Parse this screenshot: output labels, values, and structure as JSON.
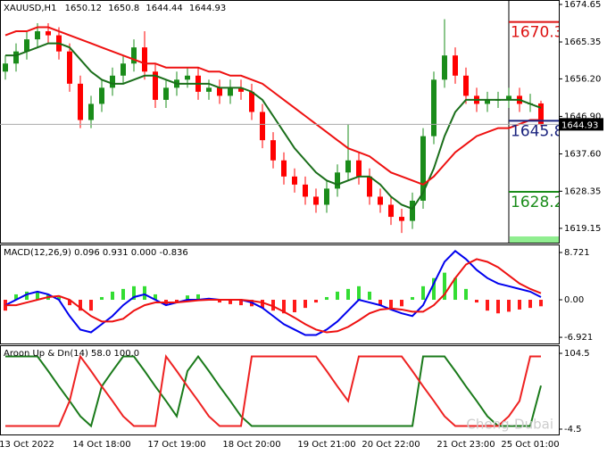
{
  "chart_data": [
    {
      "type": "candlestick",
      "title": "XAUUSD,H1",
      "categories": [
        null,
        null,
        "13 Oct 2022",
        null,
        null,
        null,
        null,
        null,
        null,
        "14 Oct 18:00",
        null,
        null,
        null,
        null,
        null,
        null,
        "17 Oct 19:00",
        null,
        null,
        null,
        null,
        null,
        null,
        "18 Oct 20:00",
        null,
        null,
        null,
        null,
        null,
        null,
        "19 Oct 21:00",
        null,
        null,
        null,
        null,
        null,
        "20 Oct 22:00",
        null,
        null,
        null,
        null,
        null,
        null,
        "21 Oct 23:00",
        null,
        null,
        null,
        null,
        null,
        "25 Oct 01:00",
        null
      ],
      "open": [
        1658,
        1660,
        1663,
        1666,
        1668,
        1667,
        1663,
        1655,
        1646,
        1650,
        1654,
        1657,
        1660,
        1664,
        1658,
        1651,
        1654,
        1656,
        1657,
        1653,
        1654,
        1652,
        1654,
        1653,
        1648,
        1641,
        1636,
        1632,
        1630,
        1627,
        1625,
        1629,
        1633,
        1636,
        1632,
        1627,
        1625,
        1622,
        1621,
        1626,
        1642,
        1656,
        1662,
        1657,
        1652,
        1650,
        1651,
        1651,
        1652,
        1650,
        1650.12
      ],
      "high": [
        1662,
        1665,
        1668,
        1670,
        1670,
        1669,
        1665,
        1657,
        1652,
        1656,
        1659,
        1662,
        1666,
        1668,
        1660,
        1656,
        1658,
        1659,
        1659,
        1656,
        1656,
        1656,
        1656,
        1655,
        1650,
        1643,
        1638,
        1634,
        1632,
        1629,
        1631,
        1635,
        1645,
        1638,
        1634,
        1629,
        1627,
        1624,
        1628,
        1644,
        1658,
        1671,
        1664,
        1659,
        1654,
        1653,
        1653,
        1654,
        1654,
        1652.5,
        1650.8
      ],
      "low": [
        1656,
        1658,
        1661,
        1664,
        1665,
        1661,
        1653,
        1644,
        1644,
        1648,
        1652,
        1655,
        1658,
        1656,
        1649,
        1649,
        1652,
        1654,
        1651,
        1651,
        1650,
        1650,
        1651,
        1646,
        1639,
        1634,
        1630,
        1628,
        1625,
        1623,
        1623,
        1627,
        1631,
        1630,
        1625,
        1623,
        1620,
        1618,
        1619,
        1624,
        1640,
        1654,
        1655,
        1650,
        1648,
        1648,
        1649,
        1649,
        1648,
        1648,
        1644.44
      ],
      "close": [
        1660,
        1663,
        1666,
        1668,
        1667,
        1663,
        1655,
        1646,
        1650,
        1654,
        1657,
        1660,
        1664,
        1658,
        1651,
        1654,
        1656,
        1657,
        1653,
        1654,
        1652,
        1654,
        1653,
        1648,
        1641,
        1636,
        1632,
        1630,
        1627,
        1625,
        1629,
        1633,
        1636,
        1632,
        1627,
        1625,
        1622,
        1621,
        1626,
        1642,
        1656,
        1662,
        1657,
        1652,
        1650,
        1651,
        1651,
        1652,
        1650,
        1650.12,
        1644.93
      ],
      "up_color": "#1a8c1a",
      "down_color": "#ff0000",
      "series": [
        {
          "color": "#1a6e1a",
          "values": [
            1662,
            1662,
            1663,
            1664,
            1665,
            1665,
            1664,
            1661,
            1658,
            1656,
            1655,
            1655,
            1656,
            1657,
            1657,
            1656,
            1655,
            1655,
            1655,
            1655,
            1654,
            1654,
            1654,
            1653,
            1651,
            1647,
            1643,
            1639,
            1636,
            1633,
            1631,
            1630,
            1631,
            1632,
            1632,
            1630,
            1627,
            1625,
            1624,
            1628,
            1634,
            1642,
            1648,
            1651,
            1651,
            1651,
            1651,
            1651,
            1651,
            1650,
            1649
          ]
        },
        {
          "color": "#ee1111",
          "values": [
            1667,
            1668,
            1668,
            1669,
            1669,
            1668,
            1667,
            1666,
            1665,
            1664,
            1663,
            1662,
            1661,
            1660,
            1660,
            1659,
            1659,
            1659,
            1659,
            1658,
            1658,
            1657,
            1657,
            1656,
            1655,
            1653,
            1651,
            1649,
            1647,
            1645,
            1643,
            1641,
            1639,
            1638,
            1637,
            1635,
            1633,
            1632,
            1631,
            1630,
            1632,
            1635,
            1638,
            1640,
            1642,
            1643,
            1644,
            1644,
            1645,
            1646,
            1646
          ]
        }
      ],
      "levels": [
        {
          "value": 1670.3,
          "color": "#dd1111"
        },
        {
          "value": 1645.8,
          "color": "#1a237e"
        },
        {
          "value": 1628.2,
          "color": "#1a8c1a"
        }
      ],
      "ylim": [
        1615.6,
        1675.75
      ],
      "yticks": [
        1674.65,
        1665.35,
        {
          "value": 1656.2,
          "label": "1656.20"
        },
        {
          "value": 1646.9,
          "label": "1646.90"
        },
        {
          "value": 1637.6,
          "label": "1637.60"
        },
        1628.35,
        1619.15
      ]
    },
    {
      "type": "macd",
      "title": "MACD(12,26,9) 0.096 0.931 0.000 -0.836",
      "histogram": {
        "pos_color": "#33dd33",
        "neg_color": "#ff1a1a",
        "values": [
          -2,
          1,
          1.5,
          1.5,
          1,
          0.5,
          -1,
          -2,
          -2,
          0.5,
          1.5,
          2,
          2.5,
          2.5,
          1,
          -1,
          -0.5,
          0.8,
          1,
          0.3,
          -0.5,
          -0.8,
          -1,
          -1.2,
          -1.5,
          -2,
          -2.5,
          -2.3,
          -1.5,
          -0.5,
          0.5,
          1.5,
          2,
          2.5,
          1.5,
          -1,
          -1.5,
          -1.2,
          0.5,
          2.5,
          4,
          5,
          4,
          2,
          -0.5,
          -2,
          -2.5,
          -2.2,
          -1.8,
          -1.5,
          -1.2
        ]
      },
      "series": [
        {
          "color": "#0000ee",
          "values": [
            -1,
            0,
            1,
            1.5,
            1,
            0,
            -3,
            -5.5,
            -6,
            -4.5,
            -3,
            -1,
            0.5,
            1,
            0,
            -1,
            -0.5,
            0,
            0,
            0.2,
            0,
            0,
            0,
            -0.5,
            -1.5,
            -3,
            -4.5,
            -5.5,
            -6.5,
            -6.5,
            -5.5,
            -4,
            -2,
            0,
            -0.5,
            -1,
            -1.8,
            -2.5,
            -3,
            -1,
            3,
            7,
            9,
            7.5,
            5.5,
            4,
            3,
            2.5,
            2,
            1.5,
            0.5
          ]
        },
        {
          "color": "#ee1111",
          "values": [
            -1,
            -1,
            -0.5,
            0,
            0.5,
            0.7,
            0,
            -1.5,
            -3,
            -4,
            -4,
            -3.5,
            -2,
            -1,
            -0.5,
            -0.5,
            -0.5,
            -0.3,
            -0.1,
            0,
            0,
            0,
            0,
            -0.2,
            -0.5,
            -1.2,
            -2.2,
            -3.3,
            -4.5,
            -5.5,
            -6,
            -5.8,
            -5,
            -3.8,
            -2.5,
            -1.8,
            -1.6,
            -1.8,
            -2.2,
            -2.2,
            -1,
            1,
            4,
            6.5,
            7.5,
            7,
            6,
            4.5,
            3,
            2,
            1.2
          ]
        }
      ],
      "ylim": [
        -8.06,
        10.04
      ],
      "yticks": [
        8.721,
        {
          "value": 0,
          "label": "0.00"
        },
        -6.921
      ]
    },
    {
      "type": "aroon",
      "title": "Aroon Up & Dn(14) 58.0 100.0",
      "series": [
        {
          "color": "#1a7a1a",
          "values": [
            100,
            100,
            100,
            100,
            79,
            57,
            36,
            14,
            0,
            57,
            79,
            100,
            100,
            79,
            57,
            36,
            14,
            79,
            100,
            79,
            57,
            36,
            14,
            0,
            0,
            0,
            0,
            0,
            0,
            0,
            0,
            0,
            0,
            0,
            0,
            0,
            0,
            0,
            0,
            100,
            100,
            100,
            79,
            57,
            36,
            14,
            0,
            0,
            0,
            0,
            58
          ]
        },
        {
          "color": "#ee2222",
          "values": [
            0,
            0,
            0,
            0,
            0,
            0,
            36,
            100,
            79,
            57,
            36,
            14,
            0,
            0,
            0,
            100,
            79,
            57,
            36,
            14,
            0,
            0,
            0,
            100,
            100,
            100,
            100,
            100,
            100,
            100,
            79,
            57,
            36,
            100,
            100,
            100,
            100,
            100,
            79,
            57,
            36,
            14,
            0,
            0,
            0,
            0,
            0,
            14,
            36,
            100,
            100
          ]
        }
      ],
      "ylim": [
        -13.5,
        114.8
      ],
      "yticks": [
        104.5,
        -4.5
      ],
      "watermark": "Cheng-Dubai"
    }
  ]
}
